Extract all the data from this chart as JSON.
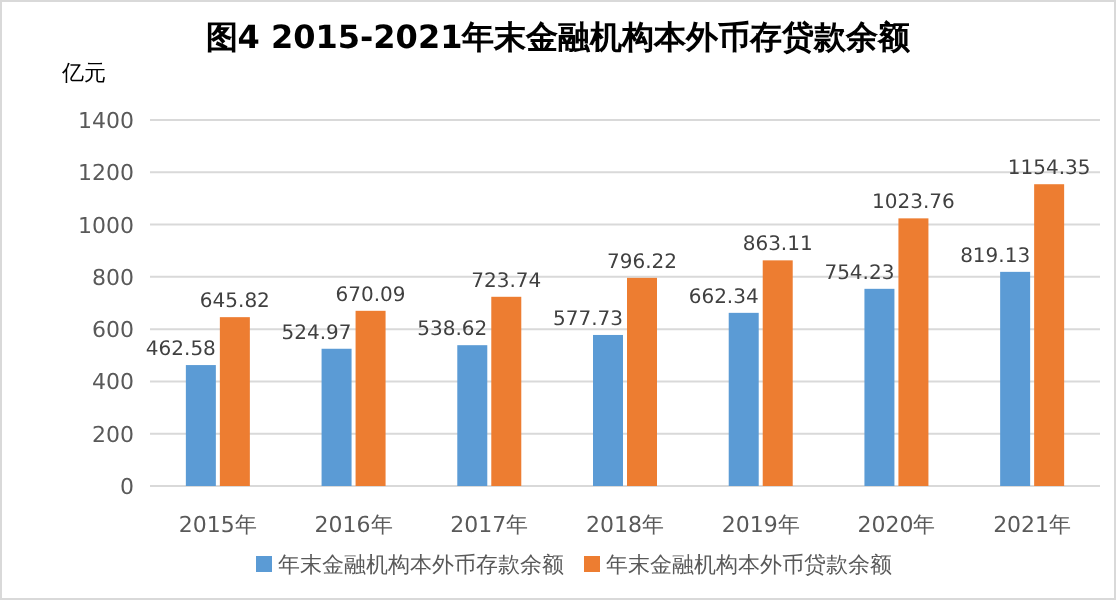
{
  "chart_data": {
    "type": "bar",
    "title": "图4 2015-2021年末金融机构本外币存贷款余额",
    "ylabel": "亿元",
    "categories": [
      "2015年",
      "2016年",
      "2017年",
      "2018年",
      "2019年",
      "2020年",
      "2021年"
    ],
    "series": [
      {
        "name": "年末金融机构本外币存款余额",
        "color": "#5b9bd5",
        "values": [
          462.58,
          524.97,
          538.62,
          577.73,
          662.34,
          754.23,
          819.13
        ]
      },
      {
        "name": "年末金融机构本外币贷款余额",
        "color": "#ed7d31",
        "values": [
          645.82,
          670.09,
          723.74,
          796.22,
          863.11,
          1023.76,
          1154.35
        ]
      }
    ],
    "ylim": [
      0,
      1400
    ],
    "yticks": [
      0,
      200,
      400,
      600,
      800,
      1000,
      1200,
      1400
    ],
    "grid": "y",
    "legend": "bottom",
    "data_labels": true
  }
}
